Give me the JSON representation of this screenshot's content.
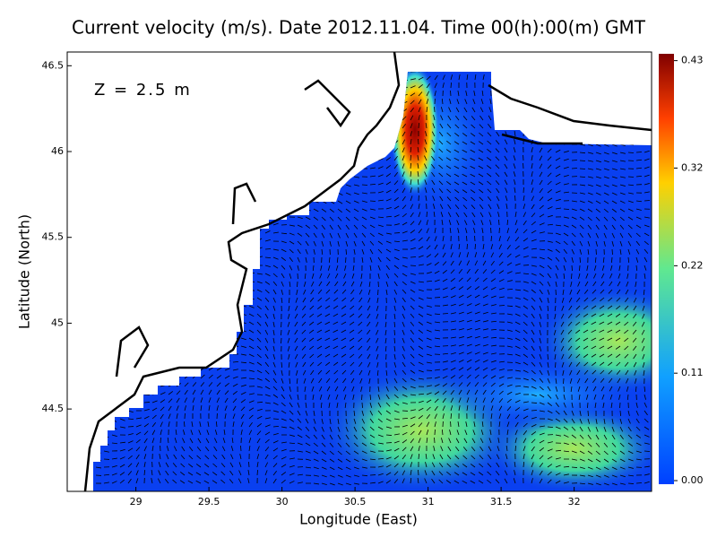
{
  "chart_data": {
    "type": "map",
    "title": "Current velocity (m/s). Date 2012.11.04. Time 00(h):00(m) GMT",
    "annotation": "Z = 2.5 m",
    "x_label": "Longitude (East)",
    "y_label": "Latitude (North)",
    "xlim": [
      28.53,
      32.53
    ],
    "xticks": [
      29,
      29.5,
      30,
      30.5,
      31,
      31.5,
      32
    ],
    "ylim": [
      44.02,
      46.58
    ],
    "yticks": [
      44.5,
      45,
      45.5,
      46,
      46.5
    ],
    "colorbar": {
      "lim": [
        0,
        0.437
      ],
      "ticks": [
        {
          "value": 0,
          "label": "0.00"
        },
        0.11,
        0.22,
        0.32,
        0.43
      ]
    }
  }
}
